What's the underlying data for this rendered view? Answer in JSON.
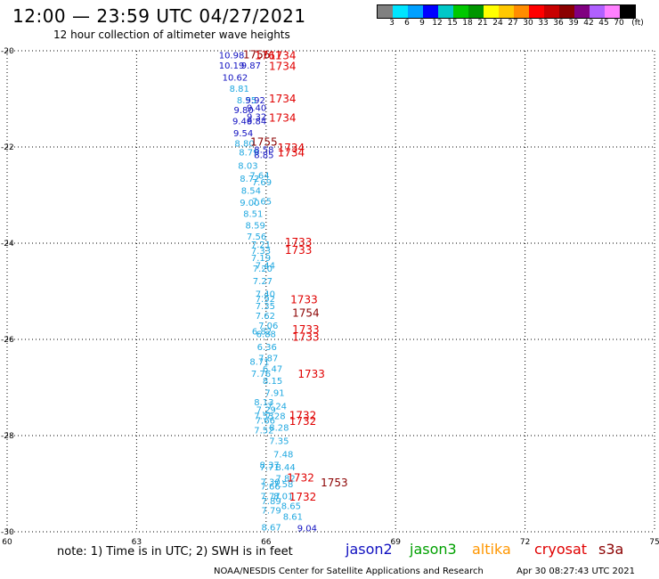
{
  "header": {
    "title": "12:00 — 23:59 UTC 04/27/2021",
    "subtitle": "12 hour collection of altimeter wave heights"
  },
  "legend": {
    "unit": "(ft)",
    "colors": [
      "#808080",
      "#00e5ff",
      "#00a0ff",
      "#0000ff",
      "#00c8c8",
      "#00c800",
      "#009600",
      "#ffff00",
      "#ffc800",
      "#ff8c00",
      "#ff0000",
      "#c80000",
      "#8b0000",
      "#800080",
      "#b060ff",
      "#ff80ff",
      "#000000"
    ],
    "labels": [
      "3",
      "6",
      "9",
      "12",
      "15",
      "18",
      "21",
      "24",
      "27",
      "30",
      "33",
      "36",
      "39",
      "42",
      "45",
      "70",
      "(ft)"
    ]
  },
  "map": {
    "y_ticks": [
      "-20",
      "-22",
      "-24",
      "-26",
      "-28",
      "-30"
    ],
    "x_ticks": [
      "60",
      "63",
      "66",
      "69",
      "72",
      "75"
    ],
    "colors": {
      "dark_blue": "#1010c0",
      "light_blue": "#20a8e0",
      "red": "#e00000",
      "dark_red": "#8b0000"
    },
    "swh_points": [
      {
        "lon": 65.2,
        "lat": -20.08,
        "text": "10.98",
        "c": "dark_blue"
      },
      {
        "lon": 65.2,
        "lat": -20.3,
        "text": "10.19",
        "c": "dark_blue"
      },
      {
        "lon": 65.65,
        "lat": -20.3,
        "text": "9.87",
        "c": "dark_blue"
      },
      {
        "lon": 65.28,
        "lat": -20.55,
        "text": "10.62",
        "c": "dark_blue"
      },
      {
        "lon": 65.38,
        "lat": -20.78,
        "text": "8.81",
        "c": "light_blue"
      },
      {
        "lon": 65.55,
        "lat": -21.02,
        "text": "8.55",
        "c": "light_blue"
      },
      {
        "lon": 65.75,
        "lat": -21.02,
        "text": "9.92",
        "c": "dark_blue"
      },
      {
        "lon": 65.48,
        "lat": -21.22,
        "text": "9.80",
        "c": "dark_blue"
      },
      {
        "lon": 65.78,
        "lat": -21.18,
        "text": "9.40",
        "c": "dark_blue"
      },
      {
        "lon": 65.78,
        "lat": -21.36,
        "text": "9.32",
        "c": "dark_blue"
      },
      {
        "lon": 65.45,
        "lat": -21.45,
        "text": "9.46",
        "c": "dark_blue"
      },
      {
        "lon": 65.78,
        "lat": -21.45,
        "text": "9.84",
        "c": "dark_blue"
      },
      {
        "lon": 65.47,
        "lat": -21.7,
        "text": "9.54",
        "c": "dark_blue"
      },
      {
        "lon": 65.5,
        "lat": -21.92,
        "text": "8.80",
        "c": "light_blue"
      },
      {
        "lon": 65.6,
        "lat": -22.1,
        "text": "8.79",
        "c": "light_blue"
      },
      {
        "lon": 65.95,
        "lat": -22.05,
        "text": "8.58",
        "c": "dark_blue"
      },
      {
        "lon": 65.95,
        "lat": -22.16,
        "text": "8.85",
        "c": "dark_blue"
      },
      {
        "lon": 65.58,
        "lat": -22.38,
        "text": "8.03",
        "c": "light_blue"
      },
      {
        "lon": 65.85,
        "lat": -22.58,
        "text": "7.64",
        "c": "light_blue"
      },
      {
        "lon": 65.62,
        "lat": -22.65,
        "text": "8.72",
        "c": "light_blue"
      },
      {
        "lon": 65.9,
        "lat": -22.72,
        "text": "7.69",
        "c": "light_blue"
      },
      {
        "lon": 65.65,
        "lat": -22.9,
        "text": "8.54",
        "c": "light_blue"
      },
      {
        "lon": 65.9,
        "lat": -23.12,
        "text": "7.65",
        "c": "light_blue"
      },
      {
        "lon": 65.62,
        "lat": -23.15,
        "text": "9.00",
        "c": "light_blue"
      },
      {
        "lon": 65.7,
        "lat": -23.38,
        "text": "8.51",
        "c": "light_blue"
      },
      {
        "lon": 65.75,
        "lat": -23.62,
        "text": "8.59",
        "c": "light_blue"
      },
      {
        "lon": 65.78,
        "lat": -23.85,
        "text": "7.56",
        "c": "light_blue"
      },
      {
        "lon": 65.88,
        "lat": -24.02,
        "text": "7.21",
        "c": "light_blue"
      },
      {
        "lon": 65.88,
        "lat": -24.15,
        "text": "7.33",
        "c": "light_blue"
      },
      {
        "lon": 65.88,
        "lat": -24.3,
        "text": "7.19",
        "c": "light_blue"
      },
      {
        "lon": 65.98,
        "lat": -24.45,
        "text": "7.44",
        "c": "light_blue"
      },
      {
        "lon": 65.92,
        "lat": -24.52,
        "text": "7.20",
        "c": "light_blue"
      },
      {
        "lon": 65.92,
        "lat": -24.78,
        "text": "7.27",
        "c": "light_blue"
      },
      {
        "lon": 65.98,
        "lat": -25.05,
        "text": "7.40",
        "c": "light_blue"
      },
      {
        "lon": 65.98,
        "lat": -25.15,
        "text": "7.92",
        "c": "light_blue"
      },
      {
        "lon": 65.98,
        "lat": -25.3,
        "text": "7.35",
        "c": "light_blue"
      },
      {
        "lon": 65.98,
        "lat": -25.5,
        "text": "7.62",
        "c": "light_blue"
      },
      {
        "lon": 66.05,
        "lat": -25.7,
        "text": "7.06",
        "c": "light_blue"
      },
      {
        "lon": 65.9,
        "lat": -25.82,
        "text": "6.82",
        "c": "light_blue"
      },
      {
        "lon": 66.0,
        "lat": -25.88,
        "text": "6.88",
        "c": "light_blue"
      },
      {
        "lon": 66.02,
        "lat": -26.15,
        "text": "6.36",
        "c": "light_blue"
      },
      {
        "lon": 66.05,
        "lat": -26.38,
        "text": "7.87",
        "c": "light_blue"
      },
      {
        "lon": 65.85,
        "lat": -26.45,
        "text": "8.71",
        "c": "light_blue"
      },
      {
        "lon": 66.15,
        "lat": -26.6,
        "text": "6.47",
        "c": "light_blue"
      },
      {
        "lon": 65.88,
        "lat": -26.7,
        "text": "7.76",
        "c": "light_blue"
      },
      {
        "lon": 66.15,
        "lat": -26.85,
        "text": "8.15",
        "c": "light_blue"
      },
      {
        "lon": 66.2,
        "lat": -27.1,
        "text": "7.91",
        "c": "light_blue"
      },
      {
        "lon": 65.95,
        "lat": -27.3,
        "text": "8.13",
        "c": "light_blue"
      },
      {
        "lon": 66.25,
        "lat": -27.38,
        "text": "7.24",
        "c": "light_blue"
      },
      {
        "lon": 66.0,
        "lat": -27.45,
        "text": "7.29",
        "c": "light_blue"
      },
      {
        "lon": 65.95,
        "lat": -27.58,
        "text": "7.53",
        "c": "light_blue"
      },
      {
        "lon": 66.22,
        "lat": -27.58,
        "text": "7.28",
        "c": "light_blue"
      },
      {
        "lon": 65.98,
        "lat": -27.68,
        "text": "7.66",
        "c": "light_blue"
      },
      {
        "lon": 66.3,
        "lat": -27.82,
        "text": "8.28",
        "c": "light_blue"
      },
      {
        "lon": 65.95,
        "lat": -27.88,
        "text": "7.52",
        "c": "light_blue"
      },
      {
        "lon": 66.3,
        "lat": -28.1,
        "text": "7.35",
        "c": "light_blue"
      },
      {
        "lon": 66.4,
        "lat": -28.38,
        "text": "7.48",
        "c": "light_blue"
      },
      {
        "lon": 66.08,
        "lat": -28.6,
        "text": "8.37",
        "c": "light_blue"
      },
      {
        "lon": 66.08,
        "lat": -28.65,
        "text": "7.71",
        "c": "light_blue"
      },
      {
        "lon": 66.45,
        "lat": -28.65,
        "text": "8.44",
        "c": "light_blue"
      },
      {
        "lon": 66.45,
        "lat": -28.88,
        "text": "7.82",
        "c": "light_blue"
      },
      {
        "lon": 66.1,
        "lat": -28.95,
        "text": "7.30",
        "c": "light_blue"
      },
      {
        "lon": 66.4,
        "lat": -29.0,
        "text": "7.58",
        "c": "light_blue"
      },
      {
        "lon": 66.1,
        "lat": -29.05,
        "text": "7.66",
        "c": "light_blue"
      },
      {
        "lon": 66.1,
        "lat": -29.25,
        "text": "7.77",
        "c": "light_blue"
      },
      {
        "lon": 66.4,
        "lat": -29.25,
        "text": "8.01",
        "c": "light_blue"
      },
      {
        "lon": 66.12,
        "lat": -29.35,
        "text": "7.89",
        "c": "light_blue"
      },
      {
        "lon": 66.58,
        "lat": -29.45,
        "text": "8.65",
        "c": "light_blue"
      },
      {
        "lon": 66.12,
        "lat": -29.55,
        "text": "7.79",
        "c": "light_blue"
      },
      {
        "lon": 66.62,
        "lat": -29.68,
        "text": "8.61",
        "c": "light_blue"
      },
      {
        "lon": 66.12,
        "lat": -29.9,
        "text": "8.67",
        "c": "light_blue"
      },
      {
        "lon": 66.95,
        "lat": -29.92,
        "text": "9.04",
        "c": "dark_blue"
      }
    ],
    "pass_times": [
      {
        "lon": 65.78,
        "lat": -20.08,
        "text": "1756",
        "c": "dark_red"
      },
      {
        "lon": 66.05,
        "lat": -20.1,
        "text": "1761",
        "c": "red"
      },
      {
        "lon": 66.38,
        "lat": -20.1,
        "text": "1734",
        "c": "red"
      },
      {
        "lon": 66.38,
        "lat": -20.32,
        "text": "1734",
        "c": "red"
      },
      {
        "lon": 66.38,
        "lat": -21.0,
        "text": "1734",
        "c": "red"
      },
      {
        "lon": 66.38,
        "lat": -21.4,
        "text": "1734",
        "c": "red"
      },
      {
        "lon": 65.95,
        "lat": -21.9,
        "text": "1755",
        "c": "dark_red"
      },
      {
        "lon": 66.58,
        "lat": -22.02,
        "text": "1734",
        "c": "red"
      },
      {
        "lon": 66.58,
        "lat": -22.12,
        "text": "1734",
        "c": "red"
      },
      {
        "lon": 66.75,
        "lat": -23.98,
        "text": "1733",
        "c": "red"
      },
      {
        "lon": 66.75,
        "lat": -24.15,
        "text": "1733",
        "c": "red"
      },
      {
        "lon": 66.88,
        "lat": -25.18,
        "text": "1733",
        "c": "red"
      },
      {
        "lon": 66.92,
        "lat": -25.45,
        "text": "1754",
        "c": "dark_red"
      },
      {
        "lon": 66.92,
        "lat": -25.8,
        "text": "1733",
        "c": "red"
      },
      {
        "lon": 66.92,
        "lat": -25.95,
        "text": "1733",
        "c": "red"
      },
      {
        "lon": 67.05,
        "lat": -26.72,
        "text": "1733",
        "c": "red"
      },
      {
        "lon": 66.85,
        "lat": -27.58,
        "text": "1732",
        "c": "red"
      },
      {
        "lon": 66.85,
        "lat": -27.7,
        "text": "1732",
        "c": "red"
      },
      {
        "lon": 66.8,
        "lat": -28.88,
        "text": "1732",
        "c": "red"
      },
      {
        "lon": 67.58,
        "lat": -28.98,
        "text": "1753",
        "c": "dark_red"
      },
      {
        "lon": 66.85,
        "lat": -29.28,
        "text": "1732",
        "c": "red"
      }
    ]
  },
  "footer": {
    "note": "note: 1) Time is in UTC; 2) SWH is in feet",
    "missions": [
      {
        "name": "jason2",
        "color": "#1010c0"
      },
      {
        "name": "jason3",
        "color": "#00a000"
      },
      {
        "name": "altika",
        "color": "#ff9600"
      },
      {
        "name": "cryosat",
        "color": "#e00000"
      },
      {
        "name": "s3a",
        "color": "#8b0000"
      }
    ],
    "credit": "NOAA/NESDIS Center for Satellite Applications and Research",
    "timestamp": "Apr 30 08:27:43 UTC 2021"
  }
}
